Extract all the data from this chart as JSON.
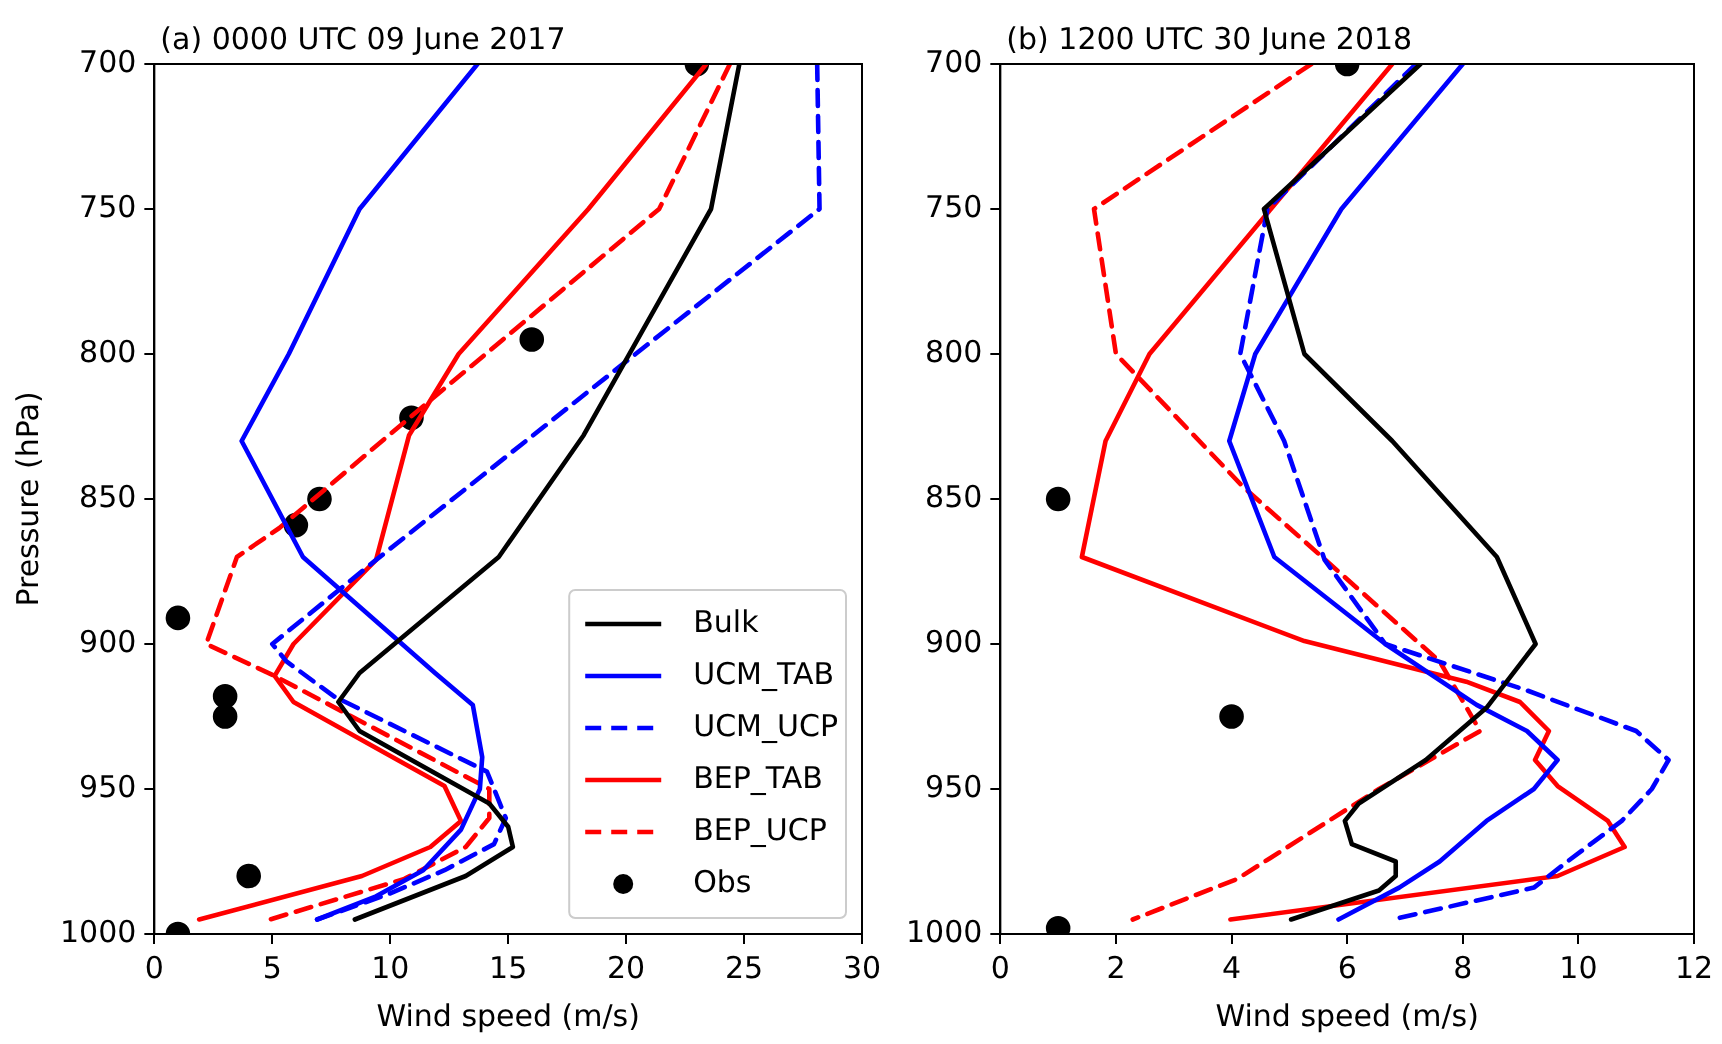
{
  "chart_data": [
    {
      "type": "line",
      "title": "(a) 0000 UTC 09 June 2017",
      "xlabel": "Wind speed (m/s)",
      "ylabel": "Pressure (hPa)",
      "xlim": [
        0,
        30
      ],
      "xticks": [
        0,
        5,
        10,
        15,
        20,
        25,
        30
      ],
      "ylim": [
        1000,
        700
      ],
      "yticks": [
        700,
        750,
        800,
        850,
        900,
        950,
        1000
      ],
      "grid": false,
      "legend": "bottom right",
      "series": [
        {
          "name": "Bulk",
          "color": "#000000",
          "line_style": "solid",
          "marker": "none",
          "x": [
            24.8,
            23.6,
            18.2,
            14.6,
            8.7,
            7.8,
            8.7,
            14.2,
            15.0,
            15.2,
            13.2,
            8.5
          ],
          "values": [
            700,
            750,
            828,
            870,
            910,
            920,
            930,
            955,
            963,
            970,
            980,
            995
          ]
        },
        {
          "name": "UCM_TAB",
          "color": "#0000ff",
          "line_style": "solid",
          "marker": "none",
          "x": [
            13.7,
            8.7,
            5.7,
            3.7,
            6.3,
            11.9,
            13.5,
            13.9,
            13.8,
            13.0,
            11.4,
            9.4,
            6.9
          ],
          "values": [
            700,
            750,
            800,
            830,
            870,
            910,
            921,
            939,
            950,
            964,
            978,
            987,
            995
          ]
        },
        {
          "name": "UCM_UCP",
          "color": "#0000ff",
          "line_style": "dashed",
          "marker": "none",
          "x": [
            28.1,
            28.2,
            20.4,
            9.4,
            5.0,
            5.6,
            7.6,
            14.1,
            14.9,
            14.4,
            12.3,
            10.0,
            6.9
          ],
          "values": [
            700,
            750,
            800,
            871,
            900,
            906,
            918,
            944,
            960,
            969,
            978,
            986,
            995
          ]
        },
        {
          "name": "BEP_TAB",
          "color": "#ff0000",
          "line_style": "solid",
          "marker": "none",
          "x": [
            23.4,
            18.4,
            12.9,
            10.8,
            9.4,
            5.9,
            5.1,
            5.9,
            12.3,
            13.0,
            11.7,
            8.8,
            1.9
          ],
          "values": [
            700,
            750,
            800,
            828,
            871,
            900,
            911,
            920,
            949,
            961,
            970,
            980,
            995
          ]
        },
        {
          "name": "BEP_UCP",
          "color": "#ff0000",
          "line_style": "dashed",
          "marker": "none",
          "x": [
            24.4,
            21.4,
            11.4,
            5.3,
            3.5,
            2.2,
            5.1,
            14.2,
            14.2,
            13.2,
            10.6,
            4.9
          ],
          "values": [
            700,
            750,
            818,
            860,
            870,
            900,
            911,
            950,
            960,
            970,
            981,
            995
          ]
        },
        {
          "name": "Obs",
          "type": "scatter",
          "color": "#000000",
          "marker": "circle",
          "x": [
            23.0,
            16.0,
            10.9,
            7.0,
            6.0,
            1.0,
            3.0,
            3.0,
            4.0,
            1.0
          ],
          "values": [
            700,
            795,
            822,
            850,
            859,
            891,
            918,
            925,
            980,
            1000
          ]
        }
      ]
    },
    {
      "type": "line",
      "title": "(b) 1200 UTC 30 June 2018",
      "xlabel": "Wind speed (m/s)",
      "xlim": [
        0,
        12
      ],
      "xticks": [
        0,
        2,
        4,
        6,
        8,
        10,
        12
      ],
      "ylim": [
        1000,
        700
      ],
      "yticks": [
        700,
        750,
        800,
        850,
        900,
        950,
        1000
      ],
      "grid": false,
      "legend": false,
      "series": [
        {
          "color": "#000000",
          "line_style": "solid",
          "marker": "none",
          "x": [
            7.27,
            4.56,
            5.26,
            6.78,
            8.59,
            9.26,
            8.41,
            7.36,
            6.2,
            5.96,
            6.08,
            6.84,
            6.84,
            6.55,
            5.03
          ],
          "values": [
            700,
            750,
            800,
            830,
            870,
            900,
            922,
            940,
            955,
            961,
            969,
            975,
            980,
            985,
            995
          ]
        },
        {
          "color": "#0000ff",
          "line_style": "solid",
          "marker": "none",
          "x": [
            8.0,
            5.9,
            4.41,
            3.96,
            4.74,
            6.66,
            8.24,
            9.11,
            9.64,
            9.23,
            8.41,
            7.6,
            6.9,
            5.85
          ],
          "values": [
            700,
            750,
            800,
            830,
            870,
            900,
            921,
            930,
            940,
            950,
            961,
            975,
            984,
            995
          ]
        },
        {
          "color": "#0000ff",
          "line_style": "dashed",
          "marker": "none",
          "x": [
            7.19,
            4.62,
            4.15,
            4.91,
            5.61,
            6.66,
            9.11,
            11.0,
            11.56,
            11.27,
            10.75,
            9.81,
            9.23,
            6.78
          ],
          "values": [
            700,
            750,
            800,
            830,
            871,
            900,
            916,
            930,
            940,
            950,
            961,
            975,
            984,
            995
          ]
        },
        {
          "color": "#ff0000",
          "line_style": "solid",
          "marker": "none",
          "x": [
            6.78,
            4.68,
            2.58,
            1.82,
            1.41,
            5.26,
            8.06,
            8.99,
            9.49,
            9.25,
            9.64,
            10.51,
            10.8,
            9.64,
            3.98
          ],
          "values": [
            700,
            750,
            800,
            830,
            870,
            899,
            913,
            920,
            930,
            940,
            949,
            961,
            970,
            980,
            995
          ]
        },
        {
          "color": "#ff0000",
          "line_style": "dashed",
          "marker": "none",
          "x": [
            5.38,
            1.62,
            2.0,
            4.21,
            7.6,
            8.3,
            6.55,
            4.1,
            2.29
          ],
          "values": [
            700,
            750,
            800,
            846,
            906,
            930,
            950,
            981,
            995
          ]
        },
        {
          "type": "scatter",
          "color": "#000000",
          "marker": "circle",
          "x": [
            6.0,
            1.0,
            4.0,
            1.0
          ],
          "values": [
            700,
            850,
            925,
            998
          ]
        }
      ]
    }
  ]
}
